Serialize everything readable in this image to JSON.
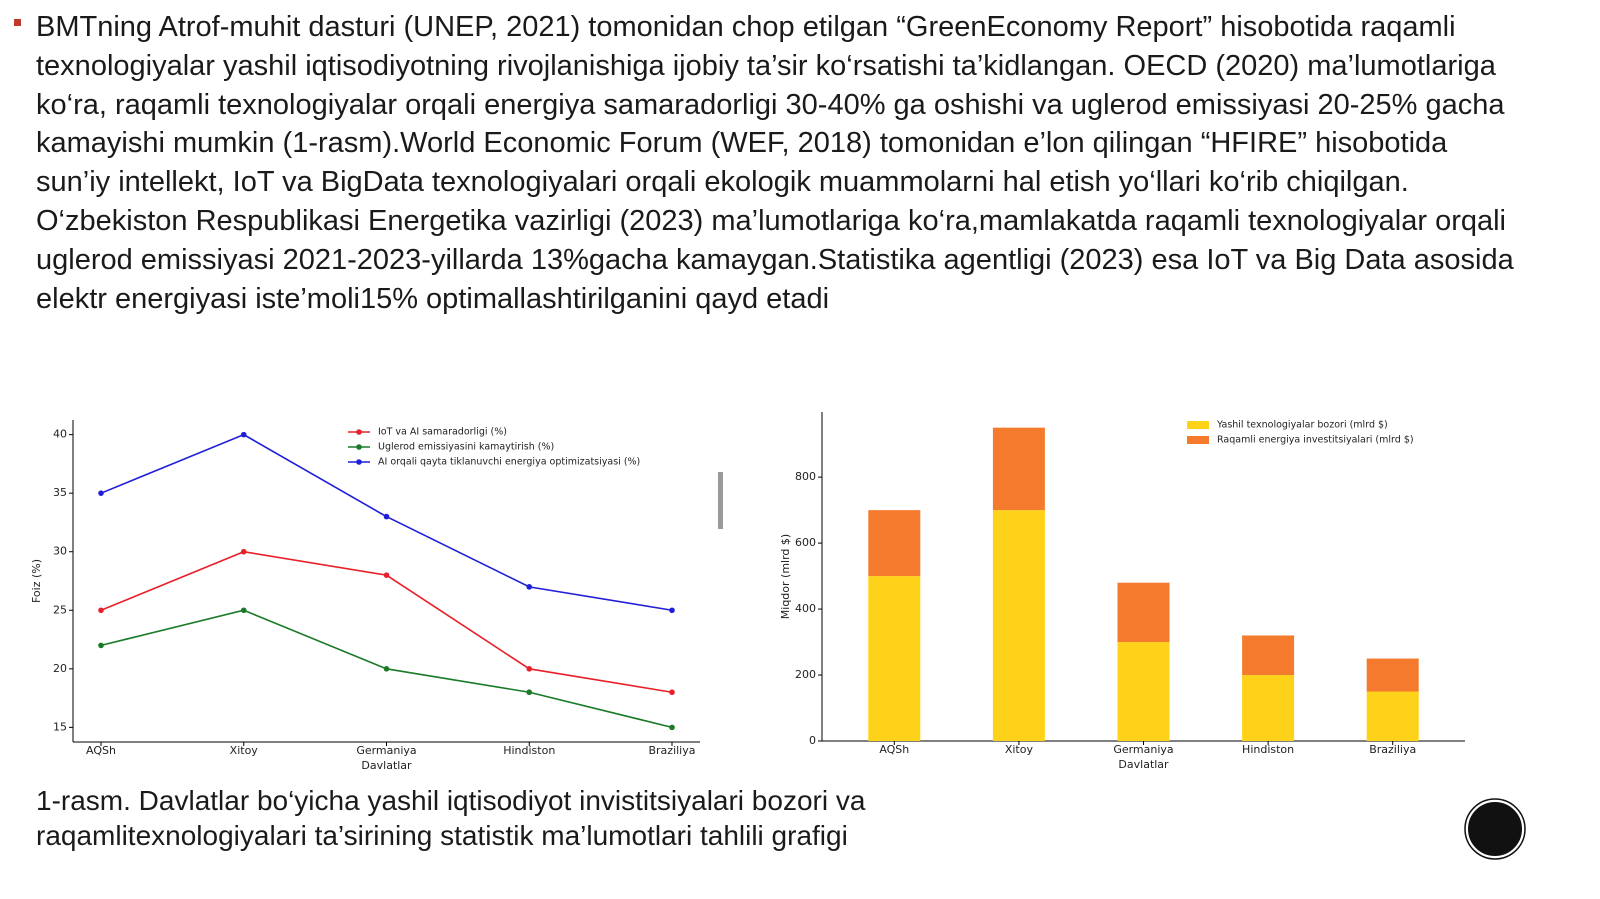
{
  "slide": {
    "paragraph": "BMTning Atrof-muhit dasturi (UNEP, 2021) tomonidan chop etilgan “GreenEconomy Report” hisobotida raqamli texnologiyalar yashil iqtisodiyotning rivojlanishiga ijobiy ta’sir ko‘rsatishi ta’kidlangan. OECD (2020) ma’lumotlariga ko‘ra, raqamli texnologiyalar orqali energiya samaradorligi 30-40% ga oshishi va uglerod emissiyasi 20-25% gacha kamayishi mumkin (1-rasm).World Economic Forum (WEF, 2018) tomonidan e’lon qilingan “HFIRE” hisobotida sun’iy intellekt, IoT va BigData texnologiyalari orqali ekologik muammolarni hal etish yo‘llari ko‘rib chiqilgan. O‘zbekiston Respublikasi Energetika vazirligi (2023) ma’lumotlariga ko‘ra,mamlakatda raqamli texnologiyalar orqali uglerod emissiyasi 2021-2023-yillarda 13%gacha kamaygan.Statistika agentligi (2023) esa IoT va Big Data asosida elektr energiyasi iste’moli15% optimallashtirilganini qayd etadi",
    "caption": "1-rasm. Davlatlar bo‘yicha yashil iqtisodiyot invistitsiyalari bozori va raqamlitexnologiyalari ta’sirining statistik ma’lumotlari tahlili grafigi"
  },
  "chart_data": [
    {
      "type": "line",
      "x_label": "Davlatlar",
      "y_label": "Foiz (%)",
      "categories": [
        "AQSh",
        "Xitoy",
        "Germaniya",
        "Hindiston",
        "Braziliya"
      ],
      "series": [
        {
          "name": "IoT va AI samaradorligi (%)",
          "color": "#e8202a",
          "values": [
            25,
            30,
            28,
            20,
            18
          ]
        },
        {
          "name": "Uglerod emissiyasini kamaytirish (%)",
          "color": "#1a7a28",
          "values": [
            22,
            25,
            20,
            18,
            15
          ]
        },
        {
          "name": "AI orqali qayta tiklanuvchi energiya optimizatsiyasi (%)",
          "color": "#1f1fd8",
          "values": [
            35,
            40,
            33,
            27,
            25
          ]
        }
      ],
      "ylim": [
        13.75,
        41.25
      ],
      "yticks": [
        15,
        20,
        25,
        30,
        35,
        40
      ],
      "legend": "top-right"
    },
    {
      "type": "stacked-bar",
      "x_label": "Davlatlar",
      "y_label": "Miqdor (mlrd $)",
      "categories": [
        "AQSh",
        "Xitoy",
        "Germaniya",
        "Hindiston",
        "Braziliya"
      ],
      "series": [
        {
          "name": "Yashil texnologiyalar bozori (mlrd $)",
          "color": "#ffd21a",
          "values": [
            500,
            700,
            300,
            200,
            150
          ]
        },
        {
          "name": "Raqamli energiya investitsiyalari (mlrd $)",
          "color": "#f47b2e",
          "values": [
            200,
            250,
            180,
            120,
            100
          ]
        }
      ],
      "ylim": [
        0,
        997.5
      ],
      "yticks": [
        0,
        200,
        400,
        600,
        800
      ],
      "legend": "top-right"
    }
  ]
}
